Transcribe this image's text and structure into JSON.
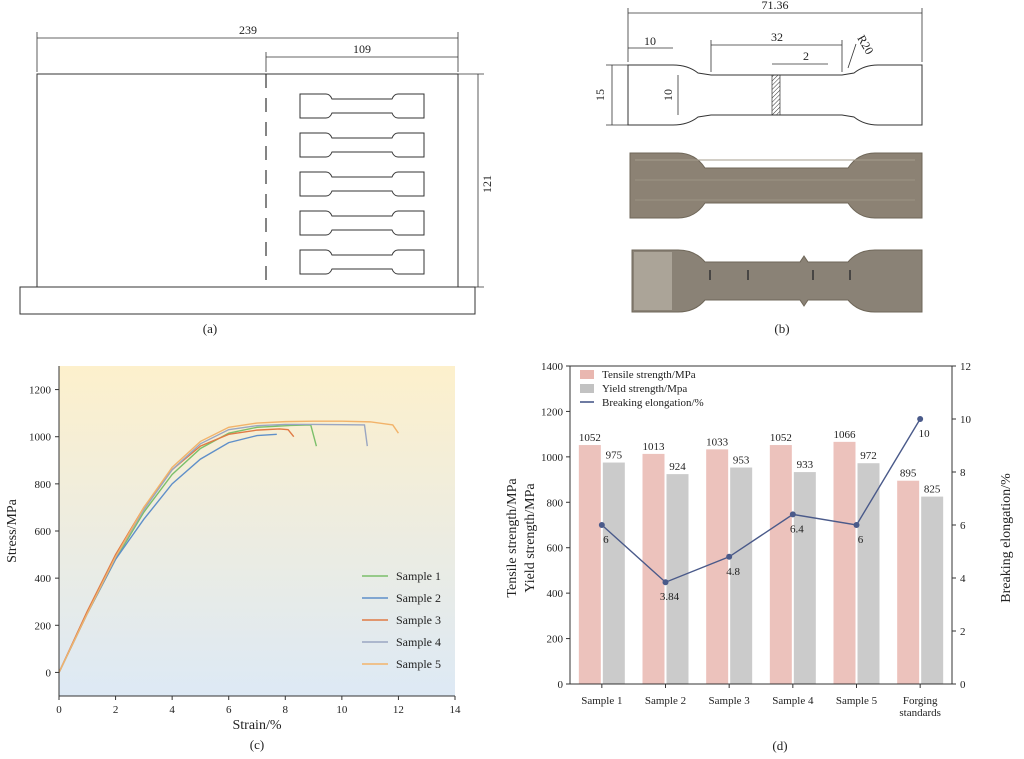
{
  "panel_a": {
    "caption": "(a)",
    "dims": {
      "width": "239",
      "inner": "109",
      "height": "121"
    }
  },
  "panel_b": {
    "caption": "(b)",
    "dims": {
      "length": "71.36",
      "radius": "R20",
      "grip": "10",
      "gauge": "32",
      "mark": "2",
      "height": "15",
      "neck": "10"
    }
  },
  "chart_data": [
    {
      "type": "line",
      "caption": "(c)",
      "xlabel": "Strain/%",
      "ylabel": "Stress/MPa",
      "xlim": [
        0,
        14
      ],
      "ylim": [
        -100,
        1300
      ],
      "xticks": [
        0,
        2,
        4,
        6,
        8,
        10,
        12,
        14
      ],
      "yticks": [
        0,
        200,
        400,
        600,
        800,
        1000,
        1200
      ],
      "legend_position": "bottom-right",
      "series": [
        {
          "name": "Sample 1",
          "color": "#7bbf6a",
          "x": [
            0,
            1,
            2,
            3,
            4,
            5,
            6,
            7,
            8.2,
            8.9,
            9.1
          ],
          "y": [
            0,
            250,
            480,
            680,
            840,
            950,
            1015,
            1040,
            1048,
            1050,
            960
          ]
        },
        {
          "name": "Sample 2",
          "color": "#5f8fc9",
          "x": [
            0,
            1,
            2,
            3,
            4,
            5,
            6,
            7,
            7.7
          ],
          "y": [
            0,
            250,
            480,
            650,
            800,
            905,
            975,
            1005,
            1010
          ]
        },
        {
          "name": "Sample 3",
          "color": "#e07a45",
          "x": [
            0,
            1,
            2,
            3,
            4,
            5,
            6,
            7,
            7.8,
            8.1,
            8.3
          ],
          "y": [
            0,
            260,
            500,
            700,
            860,
            960,
            1010,
            1028,
            1033,
            1030,
            1000
          ]
        },
        {
          "name": "Sample 4",
          "color": "#9aa6c2",
          "x": [
            0,
            1,
            2,
            3,
            4,
            5,
            6,
            7,
            8,
            9,
            10,
            10.8,
            10.9
          ],
          "y": [
            0,
            250,
            490,
            690,
            860,
            970,
            1030,
            1047,
            1052,
            1052,
            1051,
            1050,
            960
          ]
        },
        {
          "name": "Sample 5",
          "color": "#f2b36a",
          "x": [
            0,
            1,
            2,
            3,
            4,
            5,
            6,
            7,
            8,
            9,
            10,
            11,
            11.8,
            12
          ],
          "y": [
            0,
            250,
            490,
            700,
            870,
            980,
            1040,
            1058,
            1064,
            1066,
            1066,
            1063,
            1050,
            1015
          ]
        }
      ]
    },
    {
      "type": "bar",
      "caption": "(d)",
      "categories": [
        "Sample 1",
        "Sample 2",
        "Sample 3",
        "Sample 4",
        "Sample 5",
        "Forging standards"
      ],
      "ylabel_left_1": "Tensile strength/MPa",
      "ylabel_left_2": "Yield strength/MPa",
      "ylabel_right": "Breaking elongation/%",
      "ylim_left": [
        0,
        1400
      ],
      "ylim_right": [
        0,
        12
      ],
      "yticks_left": [
        0,
        200,
        400,
        600,
        800,
        1000,
        1200,
        1400
      ],
      "yticks_right": [
        0,
        2,
        4,
        6,
        8,
        10,
        12
      ],
      "legend_position": "top-left",
      "series": [
        {
          "name": "Tensile strength/MPa",
          "kind": "bar",
          "color": "#e9b7b0",
          "values": [
            1052,
            1013,
            1033,
            1052,
            1066,
            895
          ]
        },
        {
          "name": "Yield strength/Mpa",
          "kind": "bar",
          "color": "#c2c2c2",
          "values": [
            975,
            924,
            953,
            933,
            972,
            825
          ]
        },
        {
          "name": "Breaking elongation/%",
          "kind": "line",
          "color": "#4a5a8a",
          "values": [
            6,
            3.84,
            4.8,
            6.4,
            6,
            10
          ]
        }
      ]
    }
  ]
}
